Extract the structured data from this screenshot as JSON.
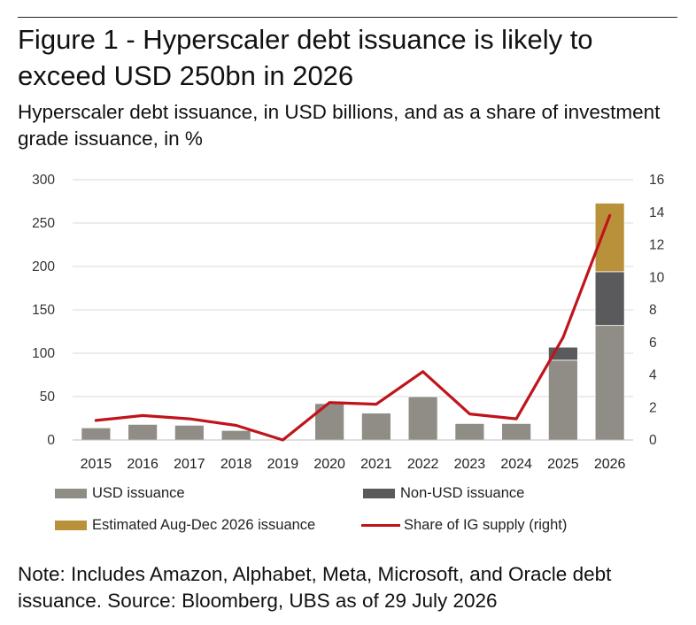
{
  "header": {
    "title": "Figure 1 - Hyperscaler debt issuance is likely to exceed USD 250bn in 2026",
    "subtitle": "Hyperscaler debt issuance, in USD billions, and as a share of investment grade issuance, in %"
  },
  "note": "Note: Includes Amazon, Alphabet, Meta, Microsoft, and Oracle debt issuance. Source: Bloomberg, UBS as of 29 July 2026",
  "colors": {
    "usd": "#8f8d86",
    "non_usd": "#5a5a5c",
    "estimated": "#b8913a",
    "share_line": "#c0141c",
    "grid": "#d9d9d9"
  },
  "chart_data": {
    "type": "bar",
    "categories": [
      "2015",
      "2016",
      "2017",
      "2018",
      "2019",
      "2020",
      "2021",
      "2022",
      "2023",
      "2024",
      "2025",
      "2026"
    ],
    "series": [
      {
        "name": "USD issuance",
        "kind": "bar",
        "values": [
          14,
          18,
          17,
          11,
          0,
          42,
          31,
          50,
          19,
          19,
          92,
          132
        ]
      },
      {
        "name": "Non-USD issuance",
        "kind": "bar",
        "values": [
          0,
          0,
          0,
          0,
          0,
          0,
          0,
          0,
          0,
          0,
          15,
          62
        ]
      },
      {
        "name": "Estimated Aug-Dec 2026 issuance",
        "kind": "bar",
        "values": [
          0,
          0,
          0,
          0,
          0,
          0,
          0,
          0,
          0,
          0,
          0,
          79
        ]
      },
      {
        "name": "Share of IG supply (right)",
        "kind": "line",
        "axis": "right",
        "values": [
          1.2,
          1.5,
          1.3,
          0.9,
          0.0,
          2.3,
          2.2,
          4.2,
          1.6,
          1.3,
          6.3,
          13.8
        ]
      }
    ],
    "stacked": true,
    "ylim": [
      0,
      300
    ],
    "yticks": [
      "0",
      "50",
      "100",
      "150",
      "200",
      "250",
      "300"
    ],
    "y2lim": [
      0,
      16
    ],
    "y2ticks": [
      "0",
      "2",
      "4",
      "6",
      "8",
      "10",
      "12",
      "14",
      "16"
    ],
    "grid": true,
    "legend_placement": "bottom"
  }
}
